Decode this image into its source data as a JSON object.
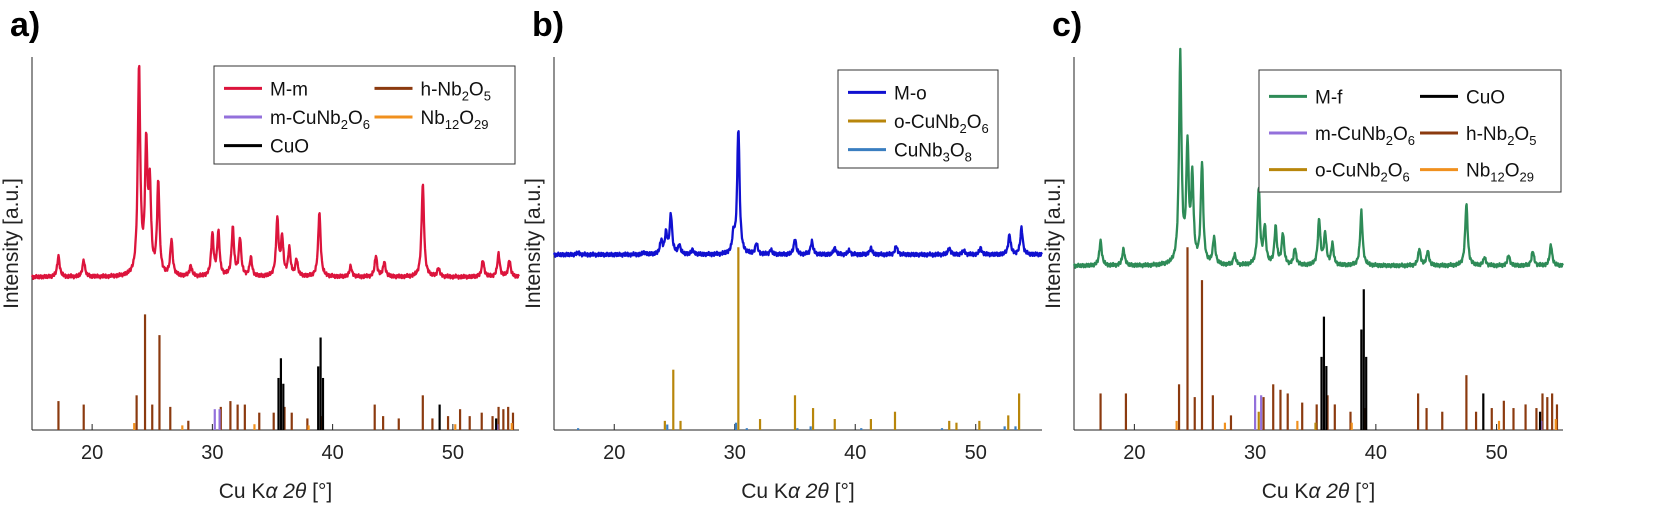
{
  "chart_data": [
    {
      "panel_label": "a)",
      "type": "line",
      "xlabel_prefix": "Cu K",
      "xlabel_symbol": "α 2θ",
      "xlabel_suffix": " [°]",
      "ylabel": "Intensity [a.u.]",
      "xlim": [
        15,
        55.5
      ],
      "xticks": [
        "20",
        "30",
        "40",
        "50"
      ],
      "xtick_values": [
        20,
        30,
        40,
        50
      ],
      "ylim": [
        0,
        1
      ],
      "grid": false,
      "legend_placement": "top-right",
      "legend": [
        {
          "name": "M-m",
          "color": "#dc143c"
        },
        {
          "name": "h-Nb2O5",
          "color": "#8b3a0f"
        },
        {
          "name": "m-CuNb2O6",
          "color": "#9370db"
        },
        {
          "name": "Nb12O29",
          "color": "#f0901e"
        },
        {
          "name": "CuO",
          "color": "#000000"
        }
      ],
      "pattern": {
        "name": "M-m",
        "color": "#dc143c",
        "baseline": 0.41,
        "scale": 0.56,
        "peaks": [
          [
            17.2,
            0.1
          ],
          [
            19.3,
            0.08
          ],
          [
            23.9,
            1.0
          ],
          [
            24.5,
            0.6
          ],
          [
            24.8,
            0.4
          ],
          [
            25.5,
            0.44
          ],
          [
            26.6,
            0.17
          ],
          [
            28.2,
            0.05
          ],
          [
            30.0,
            0.2
          ],
          [
            30.5,
            0.21
          ],
          [
            31.7,
            0.23
          ],
          [
            32.3,
            0.18
          ],
          [
            33.2,
            0.09
          ],
          [
            35.4,
            0.27
          ],
          [
            35.8,
            0.18
          ],
          [
            36.4,
            0.13
          ],
          [
            37.0,
            0.08
          ],
          [
            38.9,
            0.31
          ],
          [
            41.5,
            0.05
          ],
          [
            43.6,
            0.1
          ],
          [
            44.3,
            0.07
          ],
          [
            47.5,
            0.45
          ],
          [
            48.8,
            0.04
          ],
          [
            52.5,
            0.08
          ],
          [
            53.8,
            0.11
          ],
          [
            54.7,
            0.08
          ]
        ]
      },
      "references": [
        {
          "name": "h-Nb2O5",
          "color": "#8b3a0f",
          "scale": 0.31,
          "lines": [
            [
              17.2,
              0.25
            ],
            [
              19.3,
              0.22
            ],
            [
              23.7,
              0.3
            ],
            [
              24.4,
              1.0
            ],
            [
              25.0,
              0.22
            ],
            [
              25.6,
              0.82
            ],
            [
              26.5,
              0.2
            ],
            [
              28.0,
              0.08
            ],
            [
              30.7,
              0.2
            ],
            [
              31.5,
              0.25
            ],
            [
              32.1,
              0.22
            ],
            [
              32.7,
              0.22
            ],
            [
              33.9,
              0.15
            ],
            [
              35.1,
              0.15
            ],
            [
              36.0,
              0.2
            ],
            [
              36.6,
              0.15
            ],
            [
              37.9,
              0.1
            ],
            [
              39.1,
              0.12
            ],
            [
              43.5,
              0.22
            ],
            [
              44.2,
              0.12
            ],
            [
              45.5,
              0.1
            ],
            [
              47.5,
              0.3
            ],
            [
              48.3,
              0.1
            ],
            [
              49.6,
              0.12
            ],
            [
              50.6,
              0.18
            ],
            [
              51.4,
              0.12
            ],
            [
              52.4,
              0.15
            ],
            [
              53.3,
              0.12
            ],
            [
              53.8,
              0.2
            ],
            [
              54.2,
              0.18
            ],
            [
              54.6,
              0.2
            ],
            [
              55.0,
              0.15
            ]
          ]
        },
        {
          "name": "m-CuNb2O6",
          "color": "#9370db",
          "scale": 0.31,
          "lines": [
            [
              30.2,
              0.18
            ],
            [
              30.6,
              0.18
            ],
            [
              53.7,
              0.05
            ]
          ]
        },
        {
          "name": "Nb12O29",
          "color": "#f0901e",
          "scale": 0.31,
          "lines": [
            [
              23.5,
              0.06
            ],
            [
              27.5,
              0.04
            ],
            [
              33.5,
              0.05
            ],
            [
              38.0,
              0.04
            ],
            [
              50.2,
              0.05
            ],
            [
              54.9,
              0.06
            ]
          ]
        },
        {
          "name": "CuO",
          "color": "#000000",
          "scale": 0.31,
          "lines": [
            [
              35.5,
              0.45
            ],
            [
              35.7,
              0.62
            ],
            [
              35.9,
              0.4
            ],
            [
              38.8,
              0.55
            ],
            [
              39.0,
              0.8
            ],
            [
              39.2,
              0.45
            ],
            [
              48.9,
              0.22
            ],
            [
              53.6,
              0.1
            ]
          ]
        }
      ]
    },
    {
      "panel_label": "b)",
      "type": "line",
      "xlabel_prefix": "Cu K",
      "xlabel_symbol": "α 2θ",
      "xlabel_suffix": " [°]",
      "ylabel": "Intensity [a.u.]",
      "xlim": [
        15,
        55.5
      ],
      "xticks": [
        "20",
        "30",
        "40",
        "50"
      ],
      "xtick_values": [
        20,
        30,
        40,
        50
      ],
      "ylim": [
        0,
        1
      ],
      "grid": false,
      "legend_placement": "top-right",
      "legend": [
        {
          "name": "M-o",
          "color": "#1010d0"
        },
        {
          "name": "o-CuNb2O6",
          "color": "#b8860b"
        },
        {
          "name": "CuNb3O8",
          "color": "#3a7ec0"
        }
      ],
      "pattern": {
        "name": "M-o",
        "color": "#1010d0",
        "baseline": 0.47,
        "scale": 0.59,
        "peaks": [
          [
            17.0,
            0.01
          ],
          [
            22.5,
            0.01
          ],
          [
            23.9,
            0.06
          ],
          [
            24.3,
            0.09
          ],
          [
            24.7,
            0.18
          ],
          [
            25.4,
            0.04
          ],
          [
            26.5,
            0.02
          ],
          [
            29.9,
            0.08
          ],
          [
            30.3,
            0.57
          ],
          [
            31.8,
            0.05
          ],
          [
            33.0,
            0.02
          ],
          [
            35.0,
            0.07
          ],
          [
            36.4,
            0.06
          ],
          [
            38.3,
            0.03
          ],
          [
            39.5,
            0.02
          ],
          [
            41.3,
            0.03
          ],
          [
            43.4,
            0.04
          ],
          [
            47.8,
            0.03
          ],
          [
            49.0,
            0.02
          ],
          [
            50.4,
            0.03
          ],
          [
            52.8,
            0.09
          ],
          [
            53.8,
            0.12
          ]
        ]
      },
      "references": [
        {
          "name": "o-CuNb2O6",
          "color": "#b8860b",
          "scale": 0.49,
          "lines": [
            [
              24.2,
              0.05
            ],
            [
              24.9,
              0.33
            ],
            [
              25.5,
              0.05
            ],
            [
              30.3,
              1.0
            ],
            [
              32.1,
              0.06
            ],
            [
              35.0,
              0.19
            ],
            [
              36.5,
              0.12
            ],
            [
              38.3,
              0.06
            ],
            [
              41.3,
              0.06
            ],
            [
              43.3,
              0.1
            ],
            [
              47.8,
              0.05
            ],
            [
              48.4,
              0.04
            ],
            [
              50.3,
              0.05
            ],
            [
              52.7,
              0.08
            ],
            [
              53.6,
              0.2
            ]
          ]
        },
        {
          "name": "CuNb3O8",
          "color": "#3a7ec0",
          "scale": 0.49,
          "lines": [
            [
              17.0,
              0.01
            ],
            [
              24.4,
              0.03
            ],
            [
              30.1,
              0.04
            ],
            [
              31.0,
              0.01
            ],
            [
              35.2,
              0.01
            ],
            [
              36.3,
              0.02
            ],
            [
              40.5,
              0.01
            ],
            [
              47.2,
              0.01
            ],
            [
              52.4,
              0.02
            ],
            [
              53.3,
              0.02
            ]
          ]
        }
      ]
    },
    {
      "panel_label": "c)",
      "type": "line",
      "xlabel_prefix": "Cu K",
      "xlabel_symbol": "α 2θ",
      "xlabel_suffix": " [°]",
      "ylabel": "Intensity [a.u.]",
      "xlim": [
        15,
        55.5
      ],
      "xticks": [
        "20",
        "30",
        "40",
        "50"
      ],
      "xtick_values": [
        20,
        30,
        40,
        50
      ],
      "ylim": [
        0,
        1
      ],
      "grid": false,
      "legend_placement": "top-right",
      "legend": [
        {
          "name": "M-f",
          "color": "#2e8b57"
        },
        {
          "name": "CuO",
          "color": "#000000"
        },
        {
          "name": "m-CuNb2O6",
          "color": "#9370db"
        },
        {
          "name": "h-Nb2O5",
          "color": "#8b3a0f"
        },
        {
          "name": "o-CuNb2O6",
          "color": "#b8860b"
        },
        {
          "name": "Nb12O29",
          "color": "#f0901e"
        }
      ],
      "pattern": {
        "name": "M-f",
        "color": "#2e8b57",
        "baseline": 0.44,
        "scale": 0.56,
        "peaks": [
          [
            17.2,
            0.12
          ],
          [
            19.1,
            0.08
          ],
          [
            23.8,
            1.0
          ],
          [
            24.4,
            0.55
          ],
          [
            24.8,
            0.4
          ],
          [
            25.6,
            0.48
          ],
          [
            26.6,
            0.13
          ],
          [
            28.3,
            0.05
          ],
          [
            30.3,
            0.37
          ],
          [
            30.8,
            0.18
          ],
          [
            31.7,
            0.18
          ],
          [
            32.3,
            0.15
          ],
          [
            33.3,
            0.08
          ],
          [
            35.3,
            0.22
          ],
          [
            35.8,
            0.15
          ],
          [
            36.4,
            0.1
          ],
          [
            38.8,
            0.26
          ],
          [
            43.6,
            0.08
          ],
          [
            44.3,
            0.07
          ],
          [
            47.5,
            0.3
          ],
          [
            49.0,
            0.04
          ],
          [
            51.0,
            0.05
          ],
          [
            53.0,
            0.07
          ],
          [
            54.5,
            0.1
          ]
        ]
      },
      "references": [
        {
          "name": "h-Nb2O5",
          "color": "#8b3a0f",
          "scale": 0.49,
          "lines": [
            [
              17.2,
              0.2
            ],
            [
              19.3,
              0.2
            ],
            [
              23.7,
              0.25
            ],
            [
              24.4,
              1.0
            ],
            [
              25.0,
              0.18
            ],
            [
              25.6,
              0.82
            ],
            [
              26.5,
              0.19
            ],
            [
              28.0,
              0.08
            ],
            [
              30.7,
              0.18
            ],
            [
              31.5,
              0.25
            ],
            [
              32.1,
              0.22
            ],
            [
              32.7,
              0.2
            ],
            [
              33.9,
              0.15
            ],
            [
              35.1,
              0.14
            ],
            [
              36.0,
              0.19
            ],
            [
              36.6,
              0.14
            ],
            [
              37.9,
              0.1
            ],
            [
              39.1,
              0.12
            ],
            [
              43.5,
              0.2
            ],
            [
              44.2,
              0.12
            ],
            [
              45.5,
              0.1
            ],
            [
              47.5,
              0.3
            ],
            [
              48.3,
              0.1
            ],
            [
              49.6,
              0.12
            ],
            [
              50.6,
              0.16
            ],
            [
              51.4,
              0.12
            ],
            [
              52.4,
              0.14
            ],
            [
              53.3,
              0.12
            ],
            [
              53.8,
              0.2
            ],
            [
              54.2,
              0.18
            ],
            [
              54.6,
              0.2
            ],
            [
              55.0,
              0.14
            ]
          ]
        },
        {
          "name": "m-CuNb2O6",
          "color": "#9370db",
          "scale": 0.49,
          "lines": [
            [
              30.0,
              0.19
            ],
            [
              30.5,
              0.19
            ],
            [
              53.7,
              0.05
            ]
          ]
        },
        {
          "name": "o-CuNb2O6",
          "color": "#b8860b",
          "scale": 0.49,
          "lines": [
            [
              30.3,
              0.1
            ],
            [
              35.0,
              0.04
            ],
            [
              53.6,
              0.04
            ]
          ]
        },
        {
          "name": "Nb12O29",
          "color": "#f0901e",
          "scale": 0.49,
          "lines": [
            [
              23.5,
              0.05
            ],
            [
              27.5,
              0.04
            ],
            [
              33.5,
              0.05
            ],
            [
              38.0,
              0.04
            ],
            [
              50.2,
              0.05
            ],
            [
              54.9,
              0.06
            ]
          ]
        },
        {
          "name": "CuO",
          "color": "#000000",
          "scale": 0.49,
          "lines": [
            [
              35.5,
              0.4
            ],
            [
              35.7,
              0.62
            ],
            [
              35.9,
              0.35
            ],
            [
              38.8,
              0.55
            ],
            [
              39.0,
              0.77
            ],
            [
              39.2,
              0.4
            ],
            [
              48.9,
              0.2
            ],
            [
              53.6,
              0.1
            ]
          ]
        }
      ]
    }
  ]
}
